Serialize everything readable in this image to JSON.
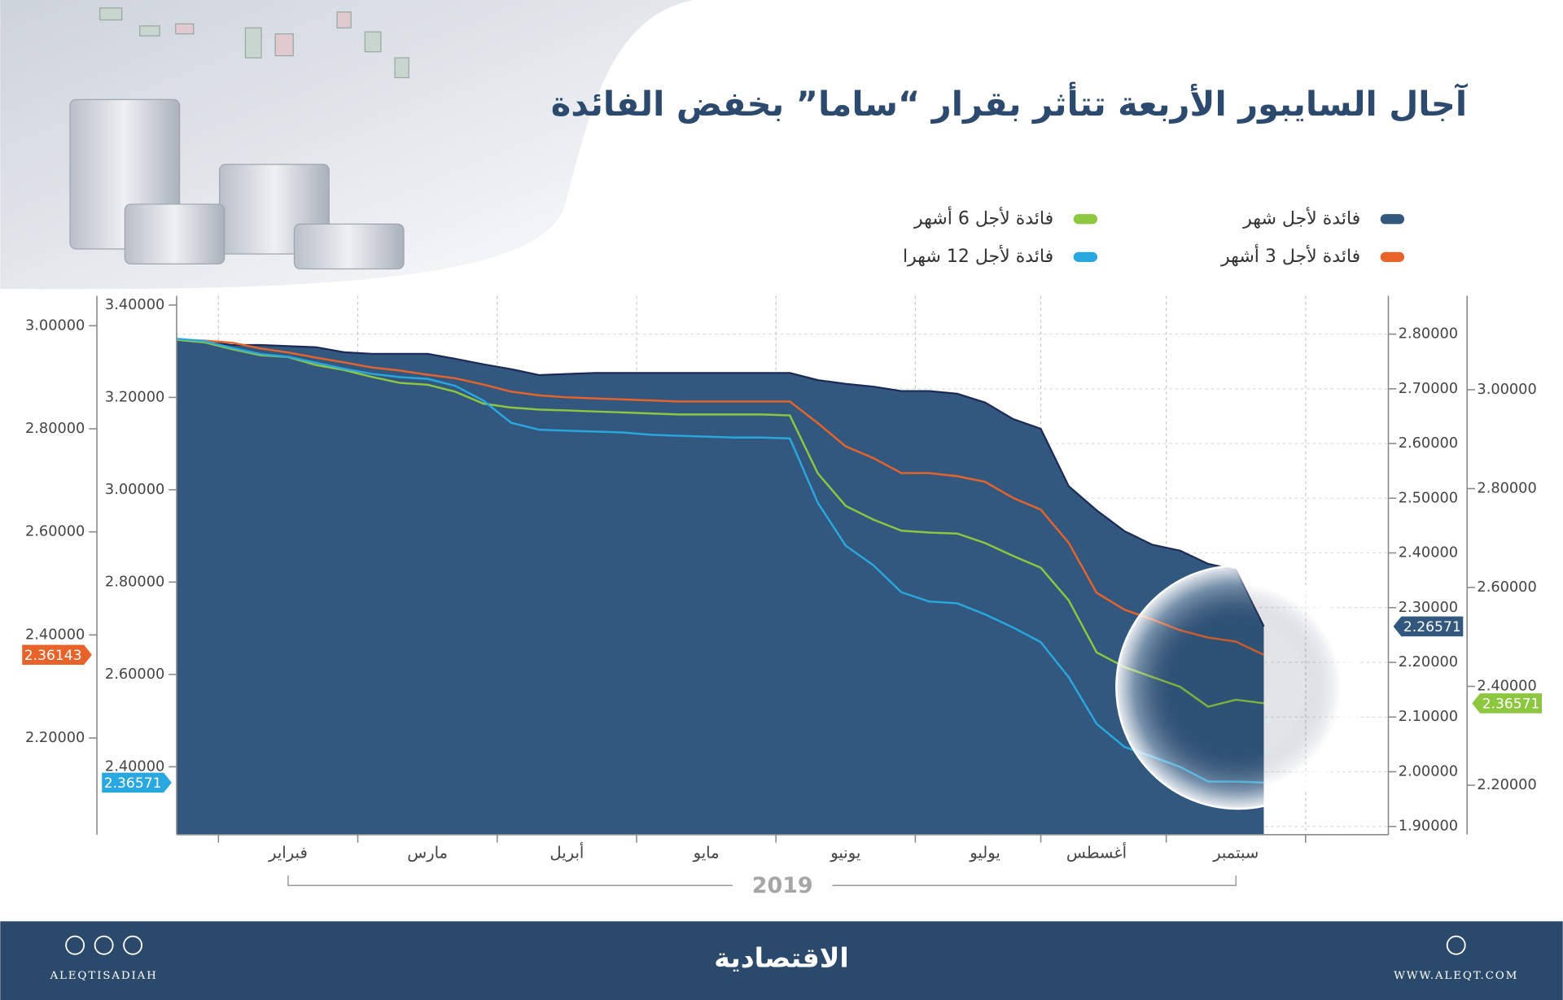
{
  "chart_data": {
    "type": "line",
    "title": "آجال السايبور الأربعة تتأثر بقرار “ساما” بخفض الفائدة",
    "annotation": "2019",
    "categories": [
      null,
      null,
      null,
      null,
      "فبراير",
      null,
      null,
      null,
      null,
      "مارس",
      null,
      null,
      null,
      null,
      "أبريل",
      null,
      null,
      null,
      null,
      "مايو",
      null,
      null,
      null,
      null,
      "يونيو",
      null,
      null,
      null,
      null,
      "يوليو",
      null,
      null,
      null,
      "أغسطس",
      null,
      null,
      null,
      null,
      "سبتمبر",
      null
    ],
    "grid": true,
    "ylim": [
      1.885,
      2.87
    ],
    "yticks": [
      {
        "value": 1.9,
        "label": "1.90000"
      },
      {
        "value": 2.0,
        "label": "2.00000"
      },
      {
        "value": 2.1,
        "label": "2.10000"
      },
      {
        "value": 2.2,
        "label": "2.20000"
      },
      {
        "value": 2.3,
        "label": "2.30000"
      },
      {
        "value": 2.4,
        "label": "2.40000"
      },
      {
        "value": 2.5,
        "label": "2.50000"
      },
      {
        "value": 2.6,
        "label": "2.60000"
      },
      {
        "value": 2.7,
        "label": "2.70000"
      },
      {
        "value": 2.8,
        "label": "2.80000"
      }
    ],
    "y2lim": [
      2.1,
      3.19
    ],
    "y2ticks": [
      {
        "value": 2.2,
        "label": "2.20000"
      },
      {
        "value": 2.4,
        "label": "2.40000"
      },
      {
        "value": 2.6,
        "label": "2.60000"
      },
      {
        "value": 2.8,
        "label": "2.80000"
      },
      {
        "value": 3.0,
        "label": "3.00000"
      }
    ],
    "y3lim": [
      2.253,
      3.42
    ],
    "y3ticks": [
      {
        "value": 2.4,
        "label": "2.40000"
      },
      {
        "value": 2.6,
        "label": "2.60000"
      },
      {
        "value": 2.8,
        "label": "2.80000"
      },
      {
        "value": 3.0,
        "label": "3.00000"
      },
      {
        "value": 3.2,
        "label": "3.20000"
      },
      {
        "value": 3.4,
        "label": "3.40000"
      }
    ],
    "y4lim": [
      2.0125,
      3.058
    ],
    "y4ticks": [
      {
        "value": 2.2,
        "label": "2.20000"
      },
      {
        "value": 2.4,
        "label": "2.40000"
      },
      {
        "value": 2.6,
        "label": "2.60000"
      },
      {
        "value": 2.8,
        "label": "2.80000"
      },
      {
        "value": 3.0,
        "label": "3.00000"
      }
    ],
    "series": [
      {
        "name": "فائدة لأجل شهر",
        "color": "#32587f",
        "axis": "y",
        "style": "area",
        "values": [
          2.789,
          2.787,
          2.78,
          2.78,
          2.778,
          2.776,
          2.767,
          2.764,
          2.764,
          2.764,
          2.755,
          2.745,
          2.736,
          2.725,
          2.727,
          2.729,
          2.729,
          2.729,
          2.729,
          2.729,
          2.729,
          2.729,
          2.729,
          2.716,
          2.709,
          2.704,
          2.696,
          2.696,
          2.691,
          2.675,
          2.645,
          2.627,
          2.522,
          2.478,
          2.44,
          2.415,
          2.404,
          2.38,
          2.369,
          2.26571
        ]
      },
      {
        "name": "فائدة لأجل 3 أشهر",
        "color": "#e8632a",
        "axis": "y4",
        "values": [
          2.973,
          2.971,
          2.967,
          2.956,
          2.948,
          2.938,
          2.929,
          2.919,
          2.913,
          2.905,
          2.898,
          2.886,
          2.872,
          2.865,
          2.861,
          2.859,
          2.857,
          2.855,
          2.853,
          2.853,
          2.853,
          2.853,
          2.853,
          2.811,
          2.766,
          2.743,
          2.714,
          2.714,
          2.708,
          2.697,
          2.666,
          2.643,
          2.579,
          2.482,
          2.449,
          2.43,
          2.409,
          2.395,
          2.387,
          2.36143
        ]
      },
      {
        "name": "فائدة لأجل 6 أشهر",
        "color": "#8dc63f",
        "axis": "y2",
        "values": [
          3.101,
          3.096,
          3.082,
          3.07,
          3.066,
          3.05,
          3.04,
          3.026,
          3.014,
          3.01,
          2.996,
          2.972,
          2.964,
          2.96,
          2.958,
          2.956,
          2.954,
          2.952,
          2.95,
          2.95,
          2.95,
          2.95,
          2.948,
          2.831,
          2.765,
          2.737,
          2.715,
          2.711,
          2.709,
          2.69,
          2.664,
          2.64,
          2.574,
          2.469,
          2.439,
          2.419,
          2.399,
          2.359,
          2.373,
          2.36571
        ]
      },
      {
        "name": "فائدة لأجل 12 شهرا",
        "color": "#29a8e0",
        "axis": "y3",
        "values": [
          3.327,
          3.322,
          3.307,
          3.294,
          3.288,
          3.275,
          3.262,
          3.251,
          3.244,
          3.24,
          3.225,
          3.193,
          3.145,
          3.13,
          3.128,
          3.126,
          3.124,
          3.119,
          3.117,
          3.115,
          3.113,
          3.113,
          3.111,
          2.972,
          2.879,
          2.836,
          2.778,
          2.758,
          2.754,
          2.73,
          2.702,
          2.67,
          2.594,
          2.493,
          2.443,
          2.422,
          2.4,
          2.368,
          2.368,
          2.36571
        ]
      }
    ]
  },
  "footer": {
    "logo": "الاقتصادية",
    "handle": "ALEQTISADIAH",
    "website": "WWW.ALEQT.COM"
  }
}
